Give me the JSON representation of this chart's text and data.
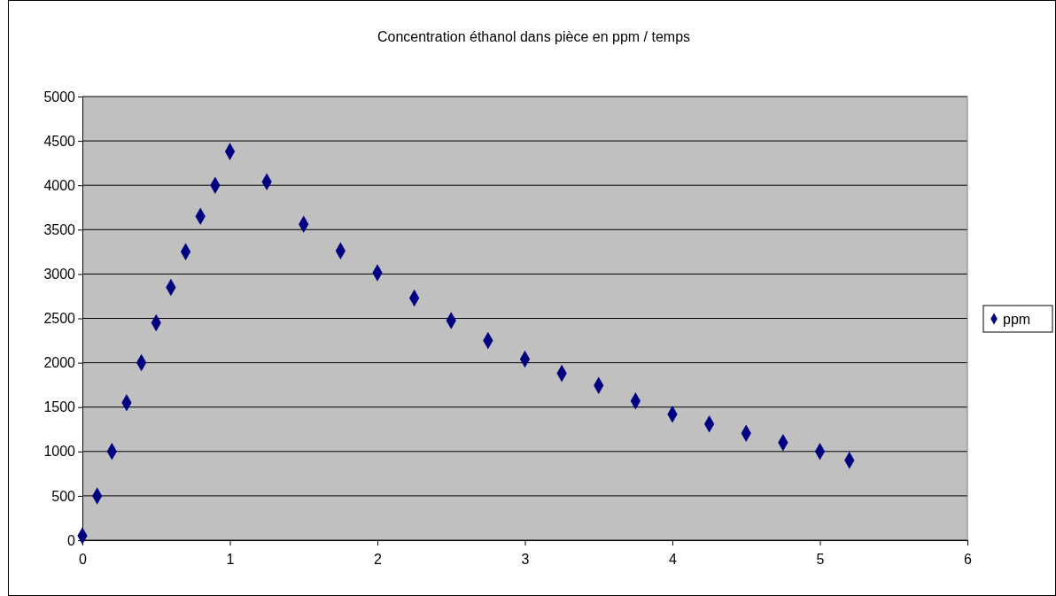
{
  "chart_data": {
    "type": "scatter",
    "title": "Concentration éthanol dans pièce en ppm / temps",
    "series": [
      {
        "name": "ppm",
        "color": "#000080",
        "x": [
          0,
          0.1,
          0.2,
          0.3,
          0.4,
          0.5,
          0.6,
          0.7,
          0.8,
          0.9,
          1,
          1.25,
          1.5,
          1.75,
          2,
          2.25,
          2.5,
          2.75,
          3,
          3.25,
          3.5,
          3.75,
          4,
          4.25,
          4.5,
          4.75,
          5,
          5.2
        ],
        "values": [
          50,
          500,
          1000,
          1550,
          2000,
          2450,
          2850,
          3250,
          3650,
          4000,
          4380,
          4040,
          3560,
          3260,
          3015,
          2730,
          2475,
          2250,
          2040,
          1880,
          1745,
          1570,
          1420,
          1310,
          1205,
          1100,
          1000,
          900
        ]
      }
    ],
    "xlim": [
      0,
      6
    ],
    "xticks": [
      0,
      1,
      2,
      3,
      4,
      5,
      6
    ],
    "ylim": [
      0,
      5000
    ],
    "yticks": [
      0,
      500,
      1000,
      1500,
      2000,
      2500,
      3000,
      3500,
      4000,
      4500,
      5000
    ],
    "grid": "y",
    "legend": "right",
    "marker": "diamond"
  }
}
